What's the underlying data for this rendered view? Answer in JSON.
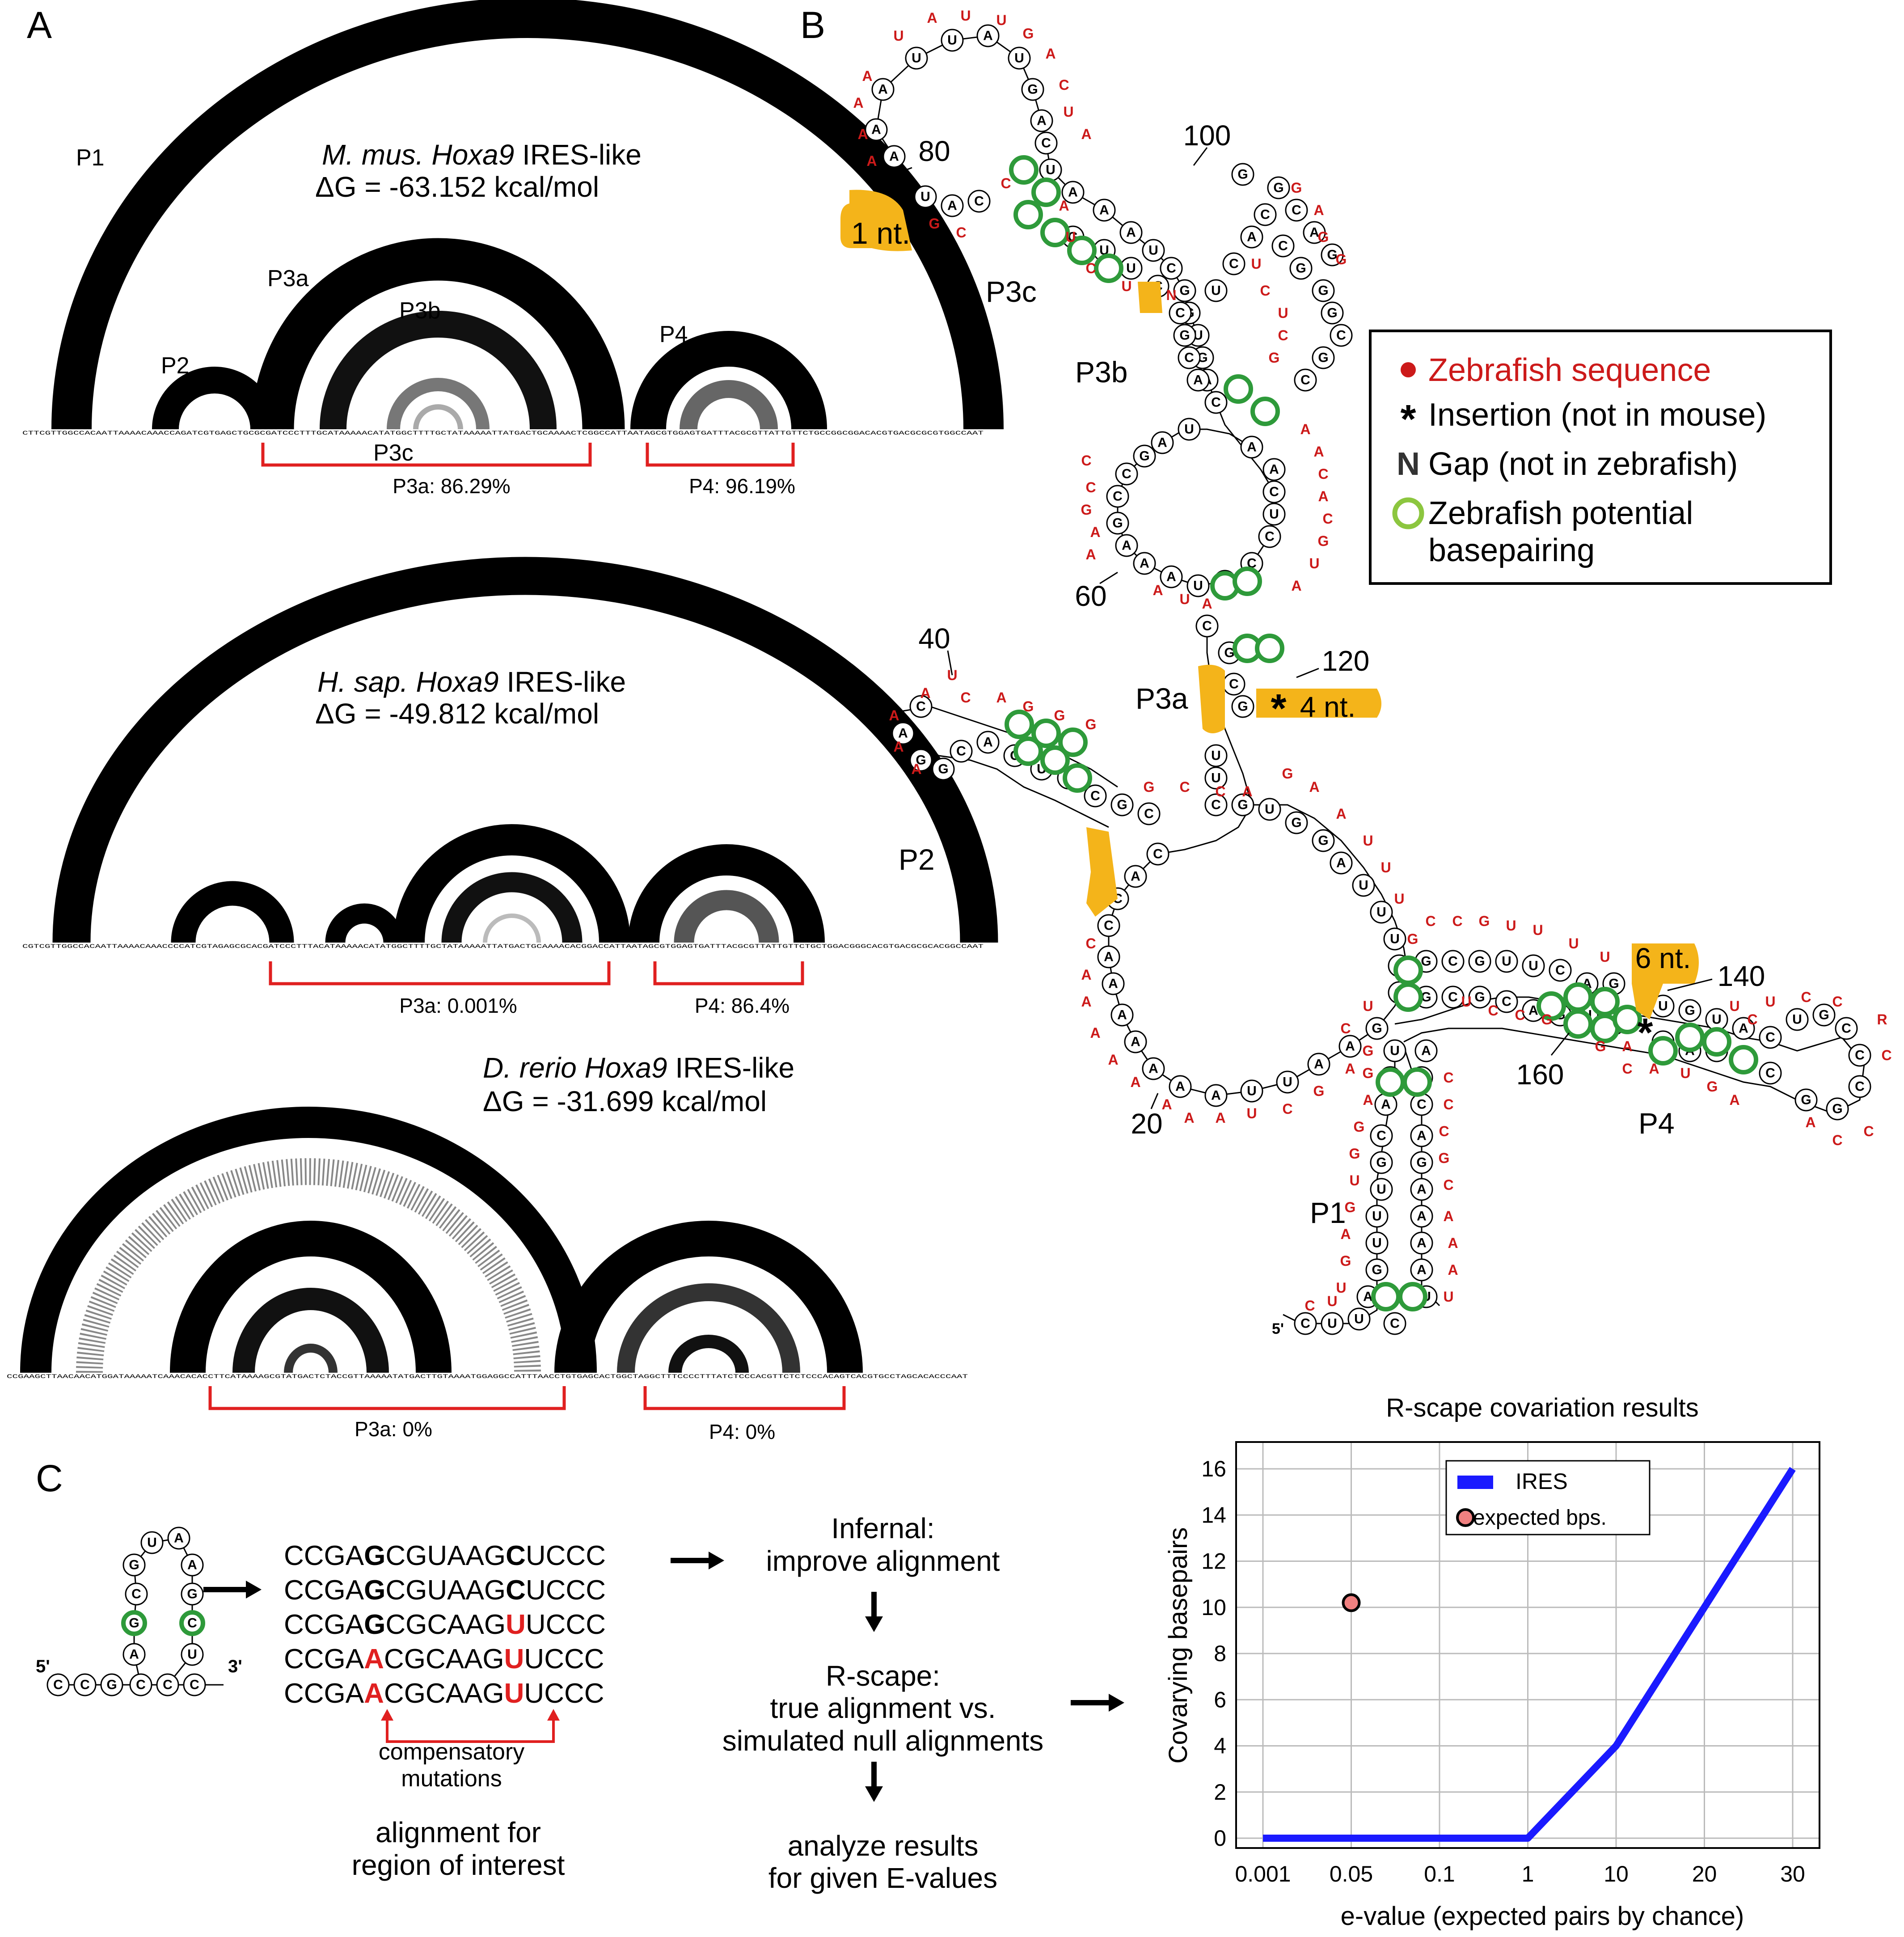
{
  "panels": {
    "a": "A",
    "b": "B",
    "c": "C"
  },
  "panelA": {
    "species": [
      {
        "name": "M. mus.",
        "gene": "Hoxa9",
        "suffix": "IRES-like",
        "dg": "ΔG = -63.152 kcal/mol",
        "arc_labels": [
          "P1",
          "P2",
          "P3a",
          "P3b",
          "P3c",
          "P4"
        ],
        "seq": "CTTCGTTGGCCACAATTAAAACAAACCAGATCGTGAGCTGCGCGATCCCTTTGCATAAAAACATATGGCTTTTGCTATAAAAATTATGACTGCAAAACTCGGCCATTAATAGCGTGGAGTGATTTACGCGTTATTGTTCTGCCGGCGGACACGTGACGCGCGTGGCCAAT",
        "bracket_p3a": "P3a: 86.29%",
        "bracket_p4": "P4: 96.19%"
      },
      {
        "name": "H. sap.",
        "gene": "Hoxa9",
        "suffix": "IRES-like",
        "dg": "ΔG = -49.812 kcal/mol",
        "seq": "CGTCGTTGGCCACAATTAAAACAAACCCCATCGTAGAGCGCACGATCCCTTTACATAAAAACATATGGCTTTTGCTATAAAAATTATGACTGCAAAACACGGACCATTAATAGCGTGGAGTGATTTACGCGTTATTGTTCTGCTGGACGGGCACGTGACGCGCACGGCCAAT",
        "bracket_p3a": "P3a: 0.001%",
        "bracket_p4": "P4: 86.4%"
      },
      {
        "name": "D. rerio",
        "gene": "Hoxa9",
        "suffix": "IRES-like",
        "dg": "ΔG = -31.699 kcal/mol",
        "seq": "CCGAAGCTTAACAACATGGATAAAAATCAAACACACCTTCATAAAAGCGTATGACTCTACCGTTAAAAATATGACTTGTAAAATGGAGGCCATTTAACCTGTGAGCACTGGCTAGGCTTTCCCCTTTATCTCCCACGTTCTCTCCCACAGTCACGTGCCTAGCACACCCAAT",
        "bracket_p3a": "P3a: 0%",
        "bracket_p4": "P4: 0%"
      }
    ]
  },
  "panelB": {
    "numbers": [
      "80",
      "100",
      "60",
      "40",
      "120",
      "140",
      "160",
      "20"
    ],
    "stems": [
      "P3c",
      "P3b",
      "P3a",
      "P2",
      "P1",
      "P4"
    ],
    "insert_labels": [
      "1 nt.",
      "4 nt.",
      "6 nt."
    ],
    "five_prime": "5'",
    "legend": [
      {
        "symbol": "●",
        "text": "Zebrafish sequence",
        "color": "#cc1a1a"
      },
      {
        "symbol": "*",
        "text": "Insertion (not in mouse)",
        "color": "#111111"
      },
      {
        "symbol": "N",
        "text": "Gap (not in zebrafish)",
        "color": "#111111"
      },
      {
        "symbol": "○",
        "text": "Zebrafish potential",
        "text2": "basepairing",
        "color": "#8cc63f"
      }
    ]
  },
  "panelC": {
    "hairpin": {
      "five": "5'",
      "three": "3'"
    },
    "alignment": [
      [
        "CCGA",
        "G",
        "CGUAAG",
        "C",
        "UCCC"
      ],
      [
        "CCGA",
        "G",
        "CGUAAG",
        "C",
        "UCCC"
      ],
      [
        "CCGA",
        "G",
        "CGCAAG",
        "U",
        "UCCC"
      ],
      [
        "CCGA",
        "A",
        "CGCAAG",
        "U",
        "UCCC"
      ],
      [
        "CCGA",
        "A",
        "CGCAAG",
        "U",
        "UCCC"
      ]
    ],
    "compensatory": [
      "compensatory",
      "mutations"
    ],
    "alignment_caption": [
      "alignment for",
      "region of interest"
    ],
    "steps": [
      [
        "Infernal:",
        "improve alignment"
      ],
      [
        "R-scape:",
        "true alignment vs.",
        "simulated null alignments"
      ],
      [
        "analyze results",
        "for given E-values"
      ]
    ]
  },
  "chart_data": {
    "type": "line",
    "title": "R-scape covariation results",
    "xlabel": "e-value (expected pairs by chance)",
    "ylabel": "Covarying basepairs",
    "x_categories": [
      "0.001",
      "0.05",
      "0.1",
      "1",
      "10",
      "20",
      "30"
    ],
    "y_ticks": [
      "0",
      "2",
      "4",
      "6",
      "8",
      "10",
      "12",
      "14",
      "16"
    ],
    "ylim": [
      0,
      16
    ],
    "grid": true,
    "legend_position": "top-center",
    "series": [
      {
        "name": "IRES",
        "type": "line",
        "color": "#1a1aff",
        "x": [
          "0.001",
          "0.05",
          "0.1",
          "1",
          "10",
          "20",
          "30"
        ],
        "y": [
          0,
          0,
          0,
          0,
          4,
          10,
          16
        ]
      },
      {
        "name": "expected bps.",
        "type": "point",
        "color": "#f08080",
        "x": [
          "0.05"
        ],
        "y": [
          10.2
        ]
      }
    ]
  }
}
